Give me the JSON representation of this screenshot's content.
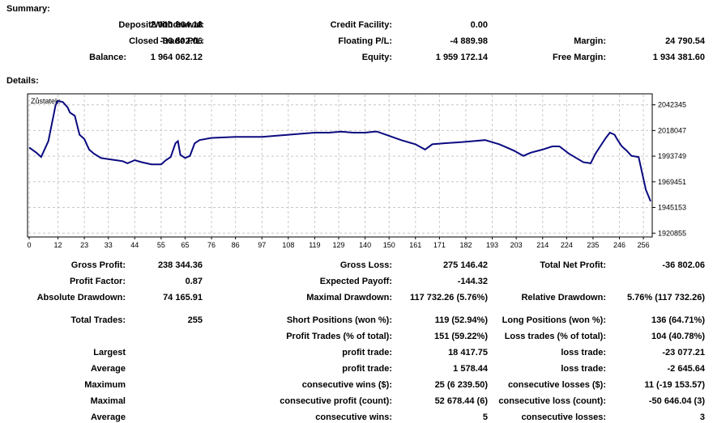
{
  "summary": {
    "title": "Summary:",
    "deposit_label": "Deposit/Withdrawal:",
    "deposit_value": "2 000 864.18",
    "credit_label": "Credit Facility:",
    "credit_value": "0.00",
    "closed_pl_label": "Closed Trade P/L:",
    "closed_pl_value": "-36 802.06",
    "floating_pl_label": "Floating P/L:",
    "floating_pl_value": "-4 889.98",
    "margin_label": "Margin:",
    "margin_value": "24 790.54",
    "balance_label": "Balance:",
    "balance_value": "1 964 062.12",
    "equity_label": "Equity:",
    "equity_value": "1 959 172.14",
    "free_margin_label": "Free Margin:",
    "free_margin_value": "1 934 381.60"
  },
  "details": {
    "title": "Details:"
  },
  "chart_data": {
    "type": "line",
    "title": "Zůstatek:",
    "x_ticks": [
      "0",
      "12",
      "23",
      "33",
      "44",
      "55",
      "65",
      "76",
      "86",
      "97",
      "108",
      "119",
      "129",
      "140",
      "150",
      "161",
      "171",
      "182",
      "193",
      "203",
      "214",
      "224",
      "235",
      "246",
      "256"
    ],
    "y_ticks": [
      "2042345",
      "2018047",
      "1993749",
      "1969451",
      "1945153",
      "1920855"
    ],
    "xlim": [
      0,
      259
    ],
    "ylim": [
      1918000,
      2052000
    ],
    "grid": true,
    "series": [
      {
        "color": "#0a0a80",
        "points": [
          [
            0,
            2002000
          ],
          [
            3,
            1997000
          ],
          [
            5,
            1993000
          ],
          [
            8,
            2008000
          ],
          [
            11,
            2042000
          ],
          [
            12,
            2046000
          ],
          [
            14,
            2045000
          ],
          [
            16,
            2040000
          ],
          [
            17,
            2035000
          ],
          [
            19,
            2032000
          ],
          [
            21,
            2014000
          ],
          [
            23,
            2010000
          ],
          [
            25,
            2000000
          ],
          [
            27,
            1996000
          ],
          [
            30,
            1992000
          ],
          [
            33,
            1991000
          ],
          [
            36,
            1990000
          ],
          [
            39,
            1989000
          ],
          [
            41,
            1987000
          ],
          [
            44,
            1990000
          ],
          [
            47,
            1988000
          ],
          [
            51,
            1986000
          ],
          [
            55,
            1986000
          ],
          [
            57,
            1990000
          ],
          [
            59,
            1993000
          ],
          [
            61,
            2006000
          ],
          [
            62,
            2008000
          ],
          [
            63,
            1995000
          ],
          [
            65,
            1992000
          ],
          [
            67,
            1994000
          ],
          [
            69,
            2006000
          ],
          [
            71,
            2009000
          ],
          [
            76,
            2011000
          ],
          [
            86,
            2012000
          ],
          [
            97,
            2012000
          ],
          [
            108,
            2014000
          ],
          [
            119,
            2016000
          ],
          [
            125,
            2016000
          ],
          [
            130,
            2017000
          ],
          [
            135,
            2016000
          ],
          [
            140,
            2016000
          ],
          [
            144,
            2017000
          ],
          [
            145,
            2017000
          ],
          [
            150,
            2013000
          ],
          [
            155,
            2009000
          ],
          [
            161,
            2005000
          ],
          [
            165,
            2000000
          ],
          [
            168,
            2005000
          ],
          [
            173,
            2006000
          ],
          [
            180,
            2007000
          ],
          [
            185,
            2008000
          ],
          [
            190,
            2009000
          ],
          [
            196,
            2005000
          ],
          [
            202,
            1999000
          ],
          [
            206,
            1994000
          ],
          [
            209,
            1997000
          ],
          [
            214,
            2000000
          ],
          [
            218,
            2003000
          ],
          [
            221,
            2003000
          ],
          [
            225,
            1996000
          ],
          [
            231,
            1988000
          ],
          [
            234,
            1987000
          ],
          [
            236,
            1996000
          ],
          [
            238,
            2003000
          ],
          [
            240,
            2010000
          ],
          [
            242,
            2016000
          ],
          [
            244,
            2014000
          ],
          [
            245,
            2010000
          ],
          [
            247,
            2003000
          ],
          [
            249,
            1999000
          ],
          [
            251,
            1994000
          ],
          [
            254,
            1993000
          ],
          [
            257,
            1962000
          ],
          [
            259,
            1951000
          ]
        ]
      }
    ]
  },
  "stats": {
    "gross_profit_label": "Gross Profit:",
    "gross_profit_value": "238 344.36",
    "gross_loss_label": "Gross Loss:",
    "gross_loss_value": "275 146.42",
    "net_profit_label": "Total Net Profit:",
    "net_profit_value": "-36 802.06",
    "profit_factor_label": "Profit Factor:",
    "profit_factor_value": "0.87",
    "expected_payoff_label": "Expected Payoff:",
    "expected_payoff_value": "-144.32",
    "abs_drawdown_label": "Absolute Drawdown:",
    "abs_drawdown_value": "74 165.91",
    "max_drawdown_label": "Maximal Drawdown:",
    "max_drawdown_value": "117 732.26 (5.76%)",
    "rel_drawdown_label": "Relative Drawdown:",
    "rel_drawdown_value": "5.76% (117 732.26)",
    "total_trades_label": "Total Trades:",
    "total_trades_value": "255",
    "short_label": "Short Positions (won %):",
    "short_value": "119 (52.94%)",
    "long_label": "Long Positions (won %):",
    "long_value": "136 (64.71%)",
    "profit_trades_label": "Profit Trades (% of total):",
    "profit_trades_value": "151 (59.22%)",
    "loss_trades_label": "Loss trades (% of total):",
    "loss_trades_value": "104 (40.78%)",
    "largest_label": "Largest",
    "largest_profit_label": "profit trade:",
    "largest_profit_value": "18 417.75",
    "largest_loss_label": "loss trade:",
    "largest_loss_value": "-23 077.21",
    "average_label": "Average",
    "average_profit_label": "profit trade:",
    "average_profit_value": "1 578.44",
    "average_loss_label": "loss trade:",
    "average_loss_value": "-2 645.64",
    "maximum_label": "Maximum",
    "max_wins_label": "consecutive wins ($):",
    "max_wins_value": "25 (6 239.50)",
    "max_losses_label": "consecutive losses ($):",
    "max_losses_value": "11 (-19 153.57)",
    "maximal_label": "Maximal",
    "maximal_profit_label": "consecutive profit (count):",
    "maximal_profit_value": "52 678.44 (6)",
    "maximal_loss_label": "consecutive loss (count):",
    "maximal_loss_value": "-50 646.04 (3)",
    "average2_label": "Average",
    "avg_wins_label": "consecutive wins:",
    "avg_wins_value": "5",
    "avg_losses_label": "consecutive losses:",
    "avg_losses_value": "3"
  }
}
